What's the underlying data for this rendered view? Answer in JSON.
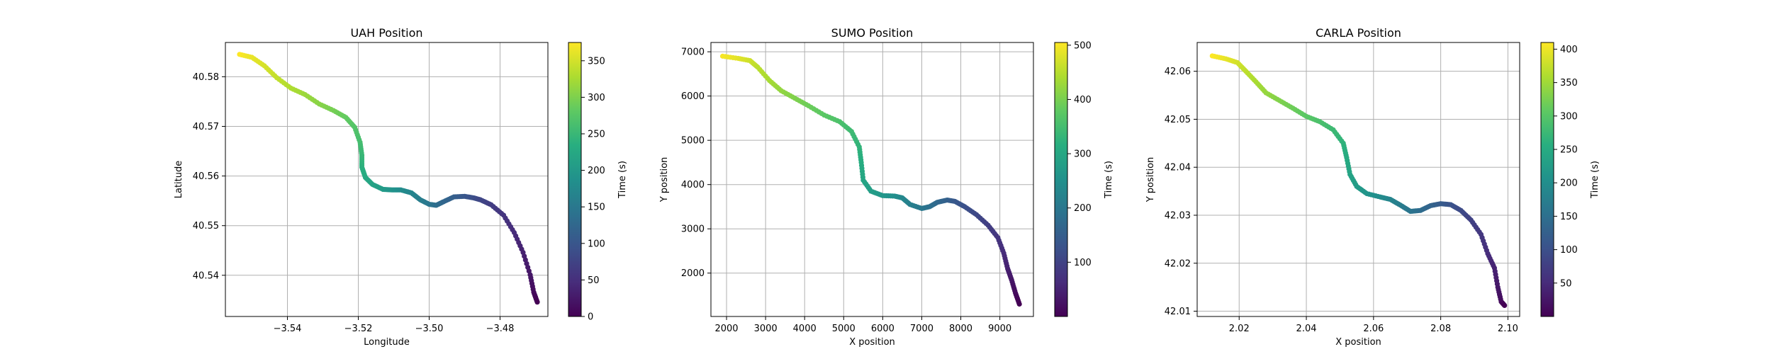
{
  "chart_data": [
    {
      "type": "scatter",
      "title": "UAH Position",
      "xlabel": "Longitude",
      "ylabel": "Latitude",
      "xlim": [
        -3.5575,
        -3.4665
      ],
      "ylim": [
        40.5317,
        40.5869
      ],
      "xticks": [
        -3.54,
        -3.52,
        -3.5,
        -3.48
      ],
      "xtick_labels": [
        "−3.54",
        "−3.52",
        "−3.50",
        "−3.48"
      ],
      "yticks": [
        40.54,
        40.55,
        40.56,
        40.57,
        40.58
      ],
      "ytick_labels": [
        "40.54",
        "40.55",
        "40.56",
        "40.57",
        "40.58"
      ],
      "grid": true,
      "colorbar": {
        "label": "Time (s)",
        "range": [
          0,
          375
        ],
        "ticks": [
          0,
          50,
          100,
          150,
          200,
          250,
          300,
          350
        ],
        "tick_labels": [
          "0",
          "50",
          "100",
          "150",
          "200",
          "250",
          "300",
          "350"
        ]
      },
      "time_range": [
        375,
        0
      ],
      "x": [
        -3.5535,
        -3.55,
        -3.5465,
        -3.543,
        -3.539,
        -3.535,
        -3.531,
        -3.527,
        -3.5235,
        -3.521,
        -3.5195,
        -3.519,
        -3.519,
        -3.518,
        -3.516,
        -3.513,
        -3.5105,
        -3.508,
        -3.505,
        -3.5025,
        -3.5,
        -3.498,
        -3.496,
        -3.493,
        -3.49,
        -3.4875,
        -3.4855,
        -3.4825,
        -3.479,
        -3.476,
        -3.4735,
        -3.4715,
        -3.4705,
        -3.4695
      ],
      "y": [
        40.5845,
        40.5839,
        40.5822,
        40.5798,
        40.5777,
        40.5764,
        40.5745,
        40.5732,
        40.5718,
        40.5698,
        40.5668,
        40.5642,
        40.5618,
        40.5597,
        40.5583,
        40.5573,
        40.5572,
        40.5572,
        40.5566,
        40.5552,
        40.5543,
        40.5541,
        40.5548,
        40.5558,
        40.5559,
        40.5556,
        40.5552,
        40.5542,
        40.5521,
        40.5486,
        40.5446,
        40.5401,
        40.5366,
        40.5346
      ]
    },
    {
      "type": "scatter",
      "title": "SUMO Position",
      "xlabel": "X position",
      "ylabel": "Y position",
      "xlim": [
        1600,
        9860
      ],
      "ylim": [
        1020,
        7210
      ],
      "xticks": [
        2000,
        3000,
        4000,
        5000,
        6000,
        7000,
        8000,
        9000
      ],
      "xtick_labels": [
        "2000",
        "3000",
        "4000",
        "5000",
        "6000",
        "7000",
        "8000",
        "9000"
      ],
      "yticks": [
        2000,
        3000,
        4000,
        5000,
        6000,
        7000
      ],
      "ytick_labels": [
        "2000",
        "3000",
        "4000",
        "5000",
        "6000",
        "7000"
      ],
      "grid": true,
      "colorbar": {
        "label": "Time (s)",
        "range": [
          0,
          505
        ],
        "ticks": [
          100,
          200,
          300,
          400,
          500
        ],
        "tick_labels": [
          "100",
          "200",
          "300",
          "400",
          "500"
        ]
      },
      "time_range": [
        500,
        0
      ],
      "x": [
        1900,
        2300,
        2600,
        2800,
        3100,
        3400,
        3750,
        4100,
        4500,
        4900,
        5200,
        5400,
        5450,
        5500,
        5700,
        6000,
        6300,
        6500,
        6700,
        7000,
        7200,
        7400,
        7650,
        7850,
        8100,
        8400,
        8700,
        8950,
        9100,
        9200,
        9300,
        9400,
        9500
      ],
      "y": [
        6900,
        6850,
        6800,
        6650,
        6350,
        6120,
        5950,
        5780,
        5570,
        5420,
        5200,
        4850,
        4500,
        4100,
        3850,
        3750,
        3740,
        3700,
        3550,
        3460,
        3500,
        3600,
        3650,
        3620,
        3500,
        3320,
        3080,
        2800,
        2450,
        2100,
        1850,
        1550,
        1300
      ]
    },
    {
      "type": "scatter",
      "title": "CARLA Position",
      "xlabel": "X position",
      "ylabel": "Y position",
      "xlim": [
        2.0075,
        2.1035
      ],
      "ylim": [
        42.0089,
        42.066
      ],
      "xticks": [
        2.02,
        2.04,
        2.06,
        2.08,
        2.1
      ],
      "xtick_labels": [
        "2.02",
        "2.04",
        "2.06",
        "2.08",
        "2.10"
      ],
      "yticks": [
        42.01,
        42.02,
        42.03,
        42.04,
        42.05,
        42.06
      ],
      "ytick_labels": [
        "42.01",
        "42.02",
        "42.03",
        "42.04",
        "42.05",
        "42.06"
      ],
      "grid": true,
      "colorbar": {
        "label": "Time (s)",
        "range": [
          0,
          410
        ],
        "ticks": [
          50,
          100,
          150,
          200,
          250,
          300,
          350,
          400
        ],
        "tick_labels": [
          "50",
          "100",
          "150",
          "200",
          "250",
          "300",
          "350",
          "400"
        ]
      },
      "time_range": [
        410,
        0
      ],
      "x": [
        2.012,
        2.016,
        2.0195,
        2.022,
        2.025,
        2.028,
        2.032,
        2.036,
        2.04,
        2.044,
        2.048,
        2.051,
        2.052,
        2.053,
        2.055,
        2.058,
        2.062,
        2.065,
        2.068,
        2.071,
        2.074,
        2.077,
        2.08,
        2.083,
        2.086,
        2.089,
        2.092,
        2.094,
        2.096,
        2.097,
        2.098,
        2.099
      ],
      "y": [
        42.0632,
        42.0626,
        42.0618,
        42.06,
        42.0578,
        42.0555,
        42.0539,
        42.0523,
        42.0506,
        42.0495,
        42.0478,
        42.045,
        42.042,
        42.0385,
        42.036,
        42.0345,
        42.0338,
        42.0333,
        42.0321,
        42.0308,
        42.031,
        42.032,
        42.0324,
        42.0322,
        42.031,
        42.029,
        42.026,
        42.022,
        42.019,
        42.015,
        42.012,
        42.0112
      ]
    }
  ]
}
